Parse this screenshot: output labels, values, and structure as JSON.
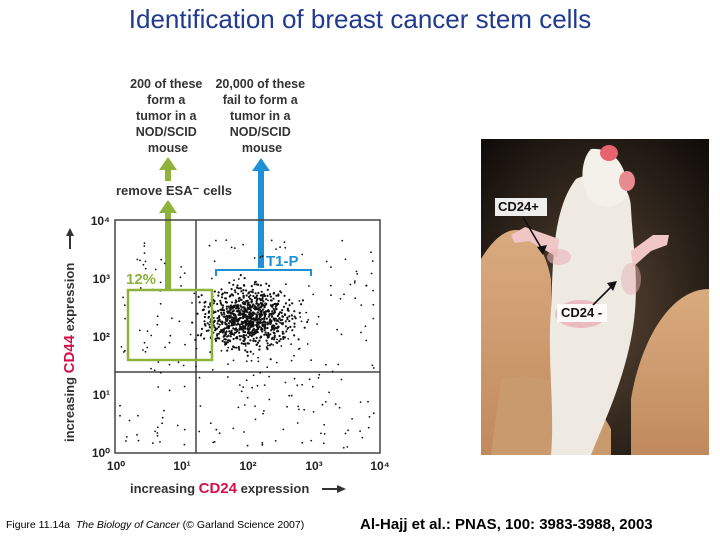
{
  "title": "Identification of breast cancer stem cells",
  "diagram": {
    "left_box": [
      "200 of these",
      "form a",
      "tumor in a",
      "NOD/SCID",
      "mouse"
    ],
    "right_box": [
      "20,000 of these",
      "fail to form a",
      "tumor in a",
      "NOD/SCID",
      "mouse"
    ],
    "remove_label": "remove ESA⁻ cells",
    "gate_percent": "12%",
    "t1p_label": "T1-P",
    "y_axis": {
      "pre": "increasing ",
      "marker": "CD44",
      "post": " expression"
    },
    "x_axis": {
      "pre": "increasing ",
      "marker": "CD24",
      "post": " expression"
    },
    "y_ticks": [
      "10⁴",
      "10³",
      "10²",
      "10¹",
      "10⁰"
    ],
    "x_ticks": [
      "10⁰",
      "10¹",
      "10²",
      "10³",
      "10⁴"
    ],
    "colors": {
      "green": "#8db33a",
      "blue": "#1e90d6",
      "marker_red": "#d3104a"
    }
  },
  "photo": {
    "label_pos": "CD24+",
    "label_neg": "CD24 -"
  },
  "caption_left": {
    "figure": "Figure 11.14a",
    "book": "The Biology of Cancer",
    "publisher": "(© Garland Science 2007)"
  },
  "citation": "Al-Hajj et al.: PNAS, 100: 3983-3988, 2003"
}
